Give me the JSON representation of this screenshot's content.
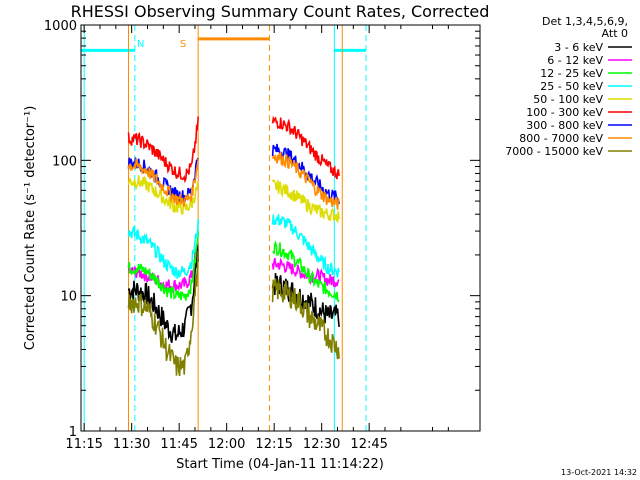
{
  "chart_data": {
    "type": "line",
    "title": "RHESSI Observing Summary Count Rates, Corrected",
    "xlabel": "Start Time (04-Jan-11 11:14:22)",
    "ylabel": "Corrected Count Rate (s⁻¹ detector⁻¹)",
    "yscale": "log",
    "ylim": [
      1,
      1000
    ],
    "xlim_minutes": [
      674,
      800
    ],
    "x_ticks": [
      {
        "t": 675,
        "label": "11:15"
      },
      {
        "t": 690,
        "label": "11:30"
      },
      {
        "t": 705,
        "label": "11:45"
      },
      {
        "t": 720,
        "label": "12:00"
      },
      {
        "t": 735,
        "label": "12:15"
      },
      {
        "t": 750,
        "label": "12:30"
      },
      {
        "t": 765,
        "label": "12:45"
      }
    ],
    "y_ticks": [
      {
        "v": 1,
        "label": "1"
      },
      {
        "v": 10,
        "label": "10"
      },
      {
        "v": 100,
        "label": "100"
      },
      {
        "v": 1000,
        "label": "1000"
      }
    ],
    "legend_header": [
      "Det 1,3,4,5,6,9,",
      "Att 0"
    ],
    "legend_position": "top-right outside",
    "footer": "13-Oct-2021 14:32",
    "segments": [
      {
        "t0": 689,
        "t1": 711
      },
      {
        "t0": 734.5,
        "t1": 755.5
      }
    ],
    "series": [
      {
        "name": "3 - 6 keV",
        "color": "#000000",
        "seg1": [
          [
            689,
            11
          ],
          [
            692,
            11
          ],
          [
            695,
            10
          ],
          [
            698,
            8
          ],
          [
            701,
            6
          ],
          [
            704,
            5
          ],
          [
            707,
            6
          ],
          [
            709,
            9
          ],
          [
            711,
            22
          ]
        ],
        "seg2": [
          [
            734.5,
            12
          ],
          [
            737,
            12
          ],
          [
            740,
            11
          ],
          [
            743,
            10
          ],
          [
            746,
            9
          ],
          [
            749,
            8
          ],
          [
            752,
            7
          ],
          [
            755.5,
            7
          ]
        ]
      },
      {
        "name": "6 - 12 keV",
        "color": "#ff00ff",
        "seg1": [
          [
            689,
            15
          ],
          [
            692,
            15
          ],
          [
            695,
            14
          ],
          [
            698,
            13
          ],
          [
            701,
            12
          ],
          [
            704,
            12
          ],
          [
            707,
            12
          ],
          [
            709,
            14
          ],
          [
            711,
            25
          ]
        ],
        "seg2": [
          [
            734.5,
            17
          ],
          [
            737,
            17
          ],
          [
            740,
            16
          ],
          [
            743,
            15
          ],
          [
            746,
            14
          ],
          [
            749,
            14
          ],
          [
            752,
            13
          ],
          [
            755.5,
            13
          ]
        ]
      },
      {
        "name": "12 - 25 keV",
        "color": "#00ff00",
        "seg1": [
          [
            689,
            16
          ],
          [
            692,
            16
          ],
          [
            695,
            15
          ],
          [
            698,
            13
          ],
          [
            701,
            11
          ],
          [
            704,
            10
          ],
          [
            707,
            10
          ],
          [
            709,
            12
          ],
          [
            711,
            28
          ]
        ],
        "seg2": [
          [
            734.5,
            23
          ],
          [
            737,
            22
          ],
          [
            740,
            20
          ],
          [
            743,
            17
          ],
          [
            746,
            14
          ],
          [
            749,
            12
          ],
          [
            752,
            11
          ],
          [
            755.5,
            10
          ]
        ]
      },
      {
        "name": "25 - 50 keV",
        "color": "#00ffff",
        "seg1": [
          [
            689,
            30
          ],
          [
            692,
            28
          ],
          [
            695,
            25
          ],
          [
            698,
            21
          ],
          [
            701,
            17
          ],
          [
            704,
            15
          ],
          [
            707,
            15
          ],
          [
            709,
            18
          ],
          [
            711,
            33
          ]
        ],
        "seg2": [
          [
            734.5,
            37
          ],
          [
            737,
            36
          ],
          [
            740,
            33
          ],
          [
            743,
            28
          ],
          [
            746,
            23
          ],
          [
            749,
            19
          ],
          [
            752,
            16
          ],
          [
            755.5,
            15
          ]
        ]
      },
      {
        "name": "50 - 100 keV",
        "color": "#dddd00",
        "seg1": [
          [
            689,
            70
          ],
          [
            692,
            70
          ],
          [
            695,
            65
          ],
          [
            698,
            58
          ],
          [
            701,
            50
          ],
          [
            704,
            45
          ],
          [
            707,
            44
          ],
          [
            709,
            48
          ],
          [
            711,
            65
          ]
        ],
        "seg2": [
          [
            734.5,
            65
          ],
          [
            737,
            63
          ],
          [
            740,
            58
          ],
          [
            743,
            52
          ],
          [
            746,
            46
          ],
          [
            749,
            42
          ],
          [
            752,
            40
          ],
          [
            755.5,
            39
          ]
        ]
      },
      {
        "name": "100 - 300 keV",
        "color": "#ff0000",
        "seg1": [
          [
            689,
            145
          ],
          [
            692,
            142
          ],
          [
            695,
            130
          ],
          [
            698,
            112
          ],
          [
            701,
            95
          ],
          [
            704,
            82
          ],
          [
            707,
            78
          ],
          [
            709,
            90
          ],
          [
            711,
            190
          ]
        ],
        "seg2": [
          [
            734.5,
            195
          ],
          [
            737,
            190
          ],
          [
            740,
            175
          ],
          [
            743,
            150
          ],
          [
            746,
            125
          ],
          [
            749,
            105
          ],
          [
            752,
            90
          ],
          [
            755.5,
            78
          ]
        ]
      },
      {
        "name": "300 - 800 keV",
        "color": "#0000ff",
        "seg1": [
          [
            689,
            97
          ],
          [
            692,
            95
          ],
          [
            695,
            88
          ],
          [
            698,
            75
          ],
          [
            701,
            64
          ],
          [
            704,
            56
          ],
          [
            707,
            54
          ],
          [
            709,
            60
          ],
          [
            711,
            110
          ]
        ],
        "seg2": [
          [
            734.5,
            120
          ],
          [
            737,
            118
          ],
          [
            740,
            108
          ],
          [
            743,
            93
          ],
          [
            746,
            78
          ],
          [
            749,
            66
          ],
          [
            752,
            57
          ],
          [
            755.5,
            52
          ]
        ]
      },
      {
        "name": "800 - 7000 keV",
        "color": "#ff8c00",
        "seg1": [
          [
            689,
            92
          ],
          [
            692,
            90
          ],
          [
            695,
            83
          ],
          [
            698,
            71
          ],
          [
            701,
            60
          ],
          [
            704,
            52
          ],
          [
            707,
            50
          ],
          [
            709,
            56
          ],
          [
            711,
            100
          ]
        ],
        "seg2": [
          [
            734.5,
            108
          ],
          [
            737,
            105
          ],
          [
            740,
            96
          ],
          [
            743,
            83
          ],
          [
            746,
            70
          ],
          [
            749,
            59
          ],
          [
            752,
            51
          ],
          [
            755.5,
            47
          ]
        ]
      },
      {
        "name": "7000 - 15000 keV",
        "color": "#808000",
        "seg1": [
          [
            689,
            9
          ],
          [
            692,
            9
          ],
          [
            695,
            8
          ],
          [
            698,
            6
          ],
          [
            701,
            4
          ],
          [
            704,
            3
          ],
          [
            707,
            3
          ],
          [
            709,
            6
          ],
          [
            711,
            18
          ]
        ],
        "seg2": [
          [
            734.5,
            11
          ],
          [
            737,
            11
          ],
          [
            740,
            10
          ],
          [
            743,
            9
          ],
          [
            746,
            7
          ],
          [
            749,
            6
          ],
          [
            752,
            5
          ],
          [
            755.5,
            4
          ]
        ]
      }
    ],
    "annotations": [
      {
        "label": "N",
        "color": "#00ffff",
        "t": 691
      },
      {
        "label": "S",
        "color": "#ff8c00",
        "t": 709
      }
    ],
    "vertical_markers": [
      {
        "t": 675,
        "color": "#00ffff",
        "style": "solid"
      },
      {
        "t": 691,
        "color": "#00ffff",
        "style": "dashed"
      },
      {
        "t": 689,
        "color": "#ff8c00",
        "style": "solid"
      },
      {
        "t": 711,
        "color": "#ff8c00",
        "style": "solid"
      },
      {
        "t": 733.5,
        "color": "#ff8c00",
        "style": "dashed"
      },
      {
        "t": 754,
        "color": "#00ffff",
        "style": "solid"
      },
      {
        "t": 756.5,
        "color": "#ff8c00",
        "style": "solid"
      },
      {
        "t": 764,
        "color": "#00ffff",
        "style": "dashed"
      }
    ],
    "horizontal_bars": [
      {
        "t0": 674,
        "t1": 691,
        "color": "#00ffff",
        "v": 650
      },
      {
        "t0": 711,
        "t1": 733.5,
        "color": "#ff8c00",
        "v": 790
      },
      {
        "t0": 754,
        "t1": 764,
        "color": "#00ffff",
        "v": 650
      }
    ]
  }
}
